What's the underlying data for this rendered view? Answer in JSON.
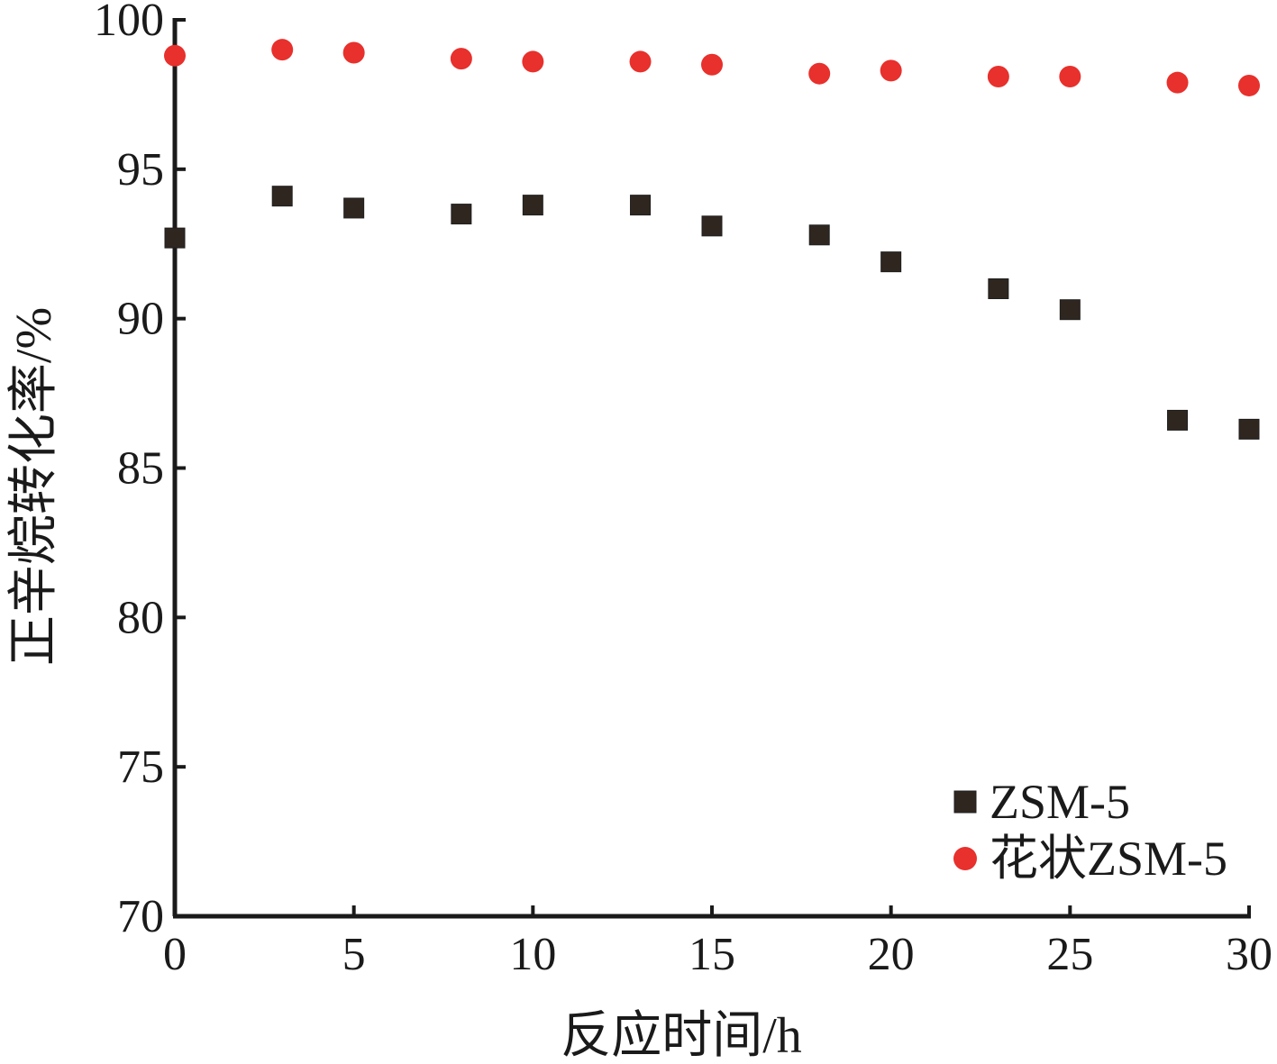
{
  "chart_data": {
    "type": "scatter",
    "xlabel": "反应时间/h",
    "ylabel": "正辛烷转化率/%",
    "xlim": [
      0,
      30
    ],
    "ylim": [
      70,
      100
    ],
    "xticks": [
      "0",
      "5",
      "10",
      "15",
      "20",
      "25",
      "30"
    ],
    "yticks": [
      "70",
      "75",
      "80",
      "85",
      "90",
      "95",
      "100"
    ],
    "grid": false,
    "legend_position": "bottom-right",
    "series": [
      {
        "name": "ZSM-5",
        "marker": "square",
        "color": "#2f2620",
        "x": [
          0,
          3,
          5,
          8,
          10,
          13,
          15,
          18,
          20,
          23,
          25,
          28,
          30
        ],
        "y": [
          92.7,
          94.1,
          93.7,
          93.5,
          93.8,
          93.8,
          93.1,
          92.8,
          91.9,
          91.0,
          90.3,
          86.6,
          86.3
        ]
      },
      {
        "name": "花状ZSM-5",
        "marker": "circle",
        "color": "#e8302c",
        "x": [
          0,
          3,
          5,
          8,
          10,
          13,
          15,
          18,
          20,
          23,
          25,
          28,
          30
        ],
        "y": [
          98.8,
          99.0,
          98.9,
          98.7,
          98.6,
          98.6,
          98.5,
          98.2,
          98.3,
          98.1,
          98.1,
          97.9,
          97.8
        ]
      }
    ]
  }
}
